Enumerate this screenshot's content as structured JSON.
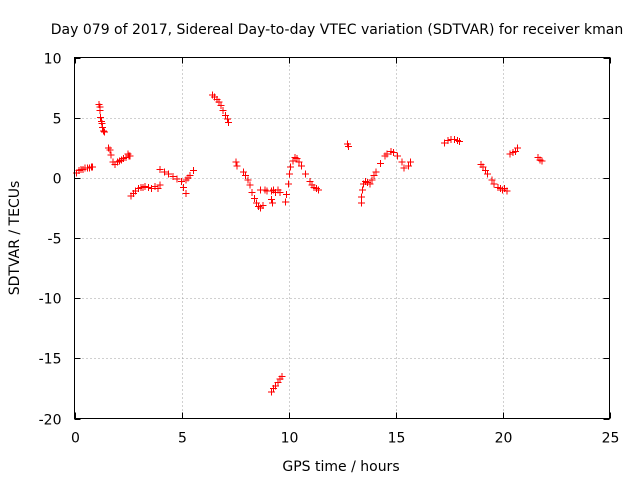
{
  "chart_data": {
    "type": "scatter",
    "title": "Day 079 of 2017, Sidereal Day-to-day VTEC variation (SDTVAR) for receiver kman",
    "xlabel": "GPS time / hours",
    "ylabel": "SDTVAR / TECUs",
    "xlim": [
      0,
      25
    ],
    "ylim": [
      -20,
      10
    ],
    "xticks": [
      0,
      5,
      10,
      15,
      20,
      25
    ],
    "xtick_labels": [
      "0",
      "5",
      "10",
      "15",
      "20",
      "25"
    ],
    "yticks": [
      10,
      5,
      0,
      -5,
      -10,
      -15,
      -20
    ],
    "ytick_labels": [
      "10",
      "5",
      "0",
      "-5",
      "-10",
      "-15",
      "-20"
    ],
    "grid": true,
    "marker": "plus",
    "color": "#ff0000",
    "series": [
      {
        "name": "SDTVAR",
        "x": [
          0.1,
          0.2,
          0.3,
          0.4,
          0.5,
          0.6,
          0.7,
          0.8,
          0.85,
          1.15,
          1.18,
          1.2,
          1.22,
          1.25,
          1.28,
          1.3,
          1.35,
          1.4,
          1.6,
          1.65,
          1.7,
          1.8,
          1.9,
          2.0,
          2.1,
          2.2,
          2.3,
          2.4,
          2.5,
          2.55,
          2.6,
          2.65,
          2.75,
          2.85,
          3.0,
          3.1,
          3.2,
          3.3,
          3.45,
          3.6,
          3.75,
          3.9,
          4.0,
          4.0,
          4.2,
          4.4,
          4.6,
          4.8,
          5.0,
          5.2,
          5.3,
          5.4,
          5.55,
          5.1,
          5.2,
          6.45,
          6.55,
          6.65,
          6.75,
          6.85,
          6.95,
          7.05,
          7.15,
          7.2,
          7.55,
          7.6,
          7.9,
          8.0,
          8.1,
          8.2,
          8.3,
          8.4,
          8.5,
          8.6,
          8.7,
          8.8,
          8.7,
          8.9,
          9.0,
          9.2,
          9.3,
          9.4,
          9.5,
          9.6,
          9.2,
          9.25,
          9.2,
          9.3,
          9.4,
          9.5,
          9.6,
          9.7,
          9.85,
          9.9,
          10.0,
          10.05,
          10.1,
          10.2,
          10.3,
          10.4,
          10.5,
          10.6,
          10.8,
          11.0,
          11.1,
          11.2,
          11.3,
          11.4,
          12.75,
          12.8,
          13.4,
          13.42,
          13.45,
          13.5,
          13.6,
          13.7,
          13.8,
          13.9,
          14.0,
          14.1,
          14.3,
          14.5,
          14.6,
          14.8,
          14.9,
          15.1,
          15.3,
          15.4,
          15.6,
          15.7,
          17.3,
          17.45,
          17.6,
          17.75,
          17.9,
          18.0,
          19.0,
          19.1,
          19.2,
          19.3,
          19.5,
          19.6,
          19.8,
          19.9,
          20.0,
          20.1,
          20.2,
          20.35,
          20.5,
          20.6,
          20.7,
          21.65,
          21.75,
          21.85
        ],
        "y": [
          0.4,
          0.6,
          0.7,
          0.7,
          0.8,
          0.8,
          0.8,
          0.9,
          0.9,
          6.1,
          5.9,
          5.6,
          5.0,
          4.7,
          4.5,
          4.2,
          3.9,
          3.8,
          2.5,
          2.3,
          1.9,
          1.3,
          1.1,
          1.3,
          1.4,
          1.5,
          1.6,
          1.7,
          2.0,
          1.8,
          1.8,
          -1.5,
          -1.3,
          -1.1,
          -0.9,
          -0.8,
          -0.8,
          -0.7,
          -0.8,
          -0.9,
          -0.7,
          -0.9,
          -0.6,
          0.7,
          0.5,
          0.3,
          0.1,
          -0.1,
          -0.3,
          -0.2,
          0.0,
          0.2,
          0.6,
          -0.8,
          -1.3,
          6.9,
          6.7,
          6.5,
          6.3,
          6.0,
          5.6,
          5.2,
          4.9,
          4.6,
          1.3,
          1.0,
          0.5,
          0.2,
          -0.2,
          -0.6,
          -1.2,
          -1.7,
          -2.1,
          -2.4,
          -2.5,
          -2.3,
          -1.0,
          -1.0,
          -1.1,
          -1.1,
          -1.0,
          -1.2,
          -1.0,
          -1.2,
          -1.8,
          -2.1,
          -17.8,
          -17.5,
          -17.3,
          -17.0,
          -16.7,
          -16.5,
          -2.0,
          -1.4,
          -0.5,
          0.3,
          0.9,
          1.4,
          1.7,
          1.6,
          1.3,
          1.0,
          0.3,
          -0.3,
          -0.6,
          -0.8,
          -0.9,
          -1.0,
          2.8,
          2.6,
          -2.1,
          -1.6,
          -1.0,
          -0.5,
          -0.3,
          -0.4,
          -0.5,
          -0.2,
          0.2,
          0.5,
          1.2,
          1.8,
          2.0,
          2.2,
          2.1,
          1.8,
          1.3,
          0.8,
          1.0,
          1.3,
          2.9,
          3.1,
          3.2,
          3.2,
          3.1,
          3.0,
          1.1,
          0.9,
          0.6,
          0.3,
          -0.2,
          -0.5,
          -0.8,
          -0.9,
          -1.0,
          -0.9,
          -1.1,
          2.0,
          2.1,
          2.2,
          2.5,
          1.7,
          1.5,
          1.4
        ]
      }
    ]
  }
}
